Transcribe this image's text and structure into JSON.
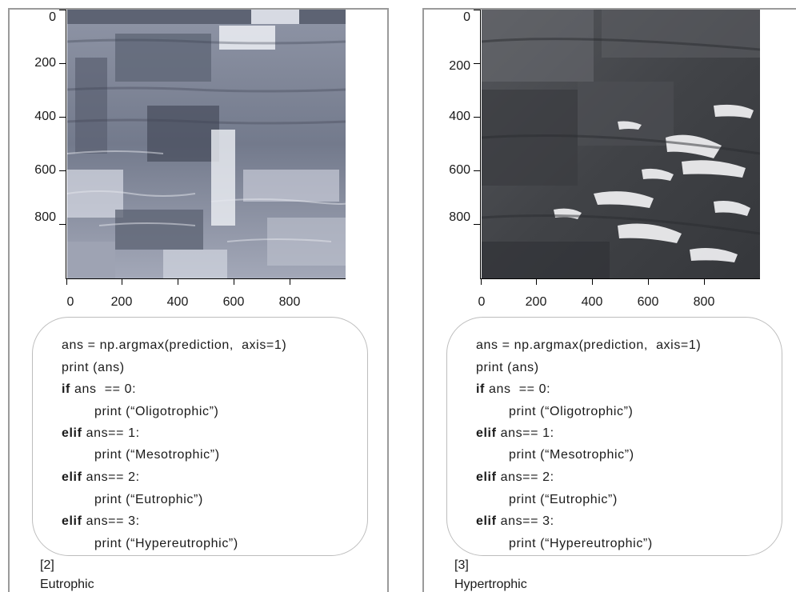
{
  "panels": [
    {
      "id": "left",
      "y_ticks": [
        "0",
        "200",
        "400",
        "600",
        "800"
      ],
      "x_ticks": [
        "0",
        "200",
        "400",
        "600",
        "800"
      ],
      "code": {
        "line1": "ans = np.argmax(prediction,  axis=1)",
        "line2": "print (ans)",
        "if_kw": "if",
        "if_rest": " ans  == 0:",
        "print0": "print (“Oligotrophic”)",
        "elif1_kw": "elif",
        "elif1_rest": " ans== 1:",
        "print1": "print (“Mesotrophic”)",
        "elif2_kw": "elif",
        "elif2_rest": " ans== 2:",
        "print2": "print (“Eutrophic”)",
        "elif3_kw": "elif",
        "elif3_rest": " ans== 3:",
        "print3": "print (“Hypereutrophic”)"
      },
      "output": {
        "array": "[2]",
        "label": "Eutrophic"
      },
      "image_tone": "light-gray-blue"
    },
    {
      "id": "right",
      "y_ticks": [
        "0",
        "200",
        "400",
        "600",
        "800"
      ],
      "x_ticks": [
        "0",
        "200",
        "400",
        "600",
        "800"
      ],
      "code": {
        "line1": "ans = np.argmax(prediction,  axis=1)",
        "line2": "print (ans)",
        "if_kw": "if",
        "if_rest": " ans  == 0:",
        "print0": "print (“Oligotrophic”)",
        "elif1_kw": "elif",
        "elif1_rest": " ans== 1:",
        "print1": "print (“Mesotrophic”)",
        "elif2_kw": "elif",
        "elif2_rest": " ans== 2:",
        "print2": "print (“Eutrophic”)",
        "elif3_kw": "elif",
        "elif3_rest": " ans== 3:",
        "print3": "print (“Hypereutrophic”)"
      },
      "output": {
        "array": "[3]",
        "label": "Hypertrophic"
      },
      "image_tone": "dark-gray"
    }
  ],
  "colors": {
    "left_image_base": "#7b8192",
    "right_image_base": "#4a4c50",
    "frame": "#9a9a9a",
    "code_border": "#bdbdbd"
  }
}
